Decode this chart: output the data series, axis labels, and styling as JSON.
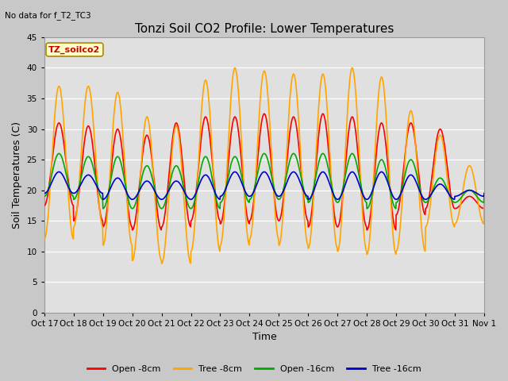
{
  "title": "Tonzi Soil CO2 Profile: Lower Temperatures",
  "top_left_text": "No data for f_T2_TC3",
  "ylabel": "Soil Temperatures (C)",
  "xlabel": "Time",
  "ylim": [
    0,
    45
  ],
  "yticks": [
    0,
    5,
    10,
    15,
    20,
    25,
    30,
    35,
    40,
    45
  ],
  "xtick_labels": [
    "Oct 17",
    "Oct 18",
    "Oct 19",
    "Oct 20",
    "Oct 21",
    "Oct 22",
    "Oct 23",
    "Oct 24",
    "Oct 25",
    "Oct 26",
    "Oct 27",
    "Oct 28",
    "Oct 29",
    "Oct 30",
    "Oct 31",
    "Nov 1"
  ],
  "bg_color": "#c8c8c8",
  "plot_bg_color": "#e0e0e0",
  "n_days": 15,
  "open8_peaks": [
    31,
    30.5,
    30,
    29,
    31,
    32,
    32,
    32.5,
    32,
    32.5,
    32,
    31,
    31,
    30,
    19
  ],
  "open8_troughs": [
    17.5,
    15,
    14,
    13.5,
    14,
    15,
    14.5,
    15,
    15,
    14,
    14,
    13.5,
    16,
    17,
    17
  ],
  "tree8_peaks": [
    37,
    37,
    36,
    32,
    30.5,
    38,
    40,
    39.5,
    39,
    39,
    40,
    38.5,
    33,
    29,
    24
  ],
  "tree8_troughs": [
    12,
    14,
    11,
    8.5,
    8,
    10,
    11,
    12,
    11,
    10.5,
    10,
    9.5,
    10,
    14,
    14.5
  ],
  "open16_peaks": [
    26,
    25.5,
    25.5,
    24,
    24,
    25.5,
    25.5,
    26,
    26,
    26,
    26,
    25,
    25,
    22,
    20
  ],
  "open16_troughs": [
    19,
    18.5,
    17,
    17,
    17,
    17,
    18,
    18.5,
    18.5,
    18,
    18,
    17,
    18,
    18,
    18
  ],
  "tree16_peaks": [
    23,
    22.5,
    22,
    21.5,
    21.5,
    22.5,
    23,
    23,
    23,
    23,
    23,
    23,
    22.5,
    21,
    20
  ],
  "tree16_troughs": [
    19.5,
    19.5,
    18.5,
    18.5,
    18.5,
    18.5,
    19,
    19,
    19,
    18.5,
    18.5,
    18.5,
    18.5,
    18.5,
    19
  ],
  "color_open8": "#ff0000",
  "color_tree8": "#ffa500",
  "color_open16": "#00aa00",
  "color_tree16": "#0000cc",
  "linewidth": 1.2,
  "title_fontsize": 11,
  "axis_fontsize": 9,
  "tick_fontsize": 7.5,
  "legend_fontsize": 8
}
